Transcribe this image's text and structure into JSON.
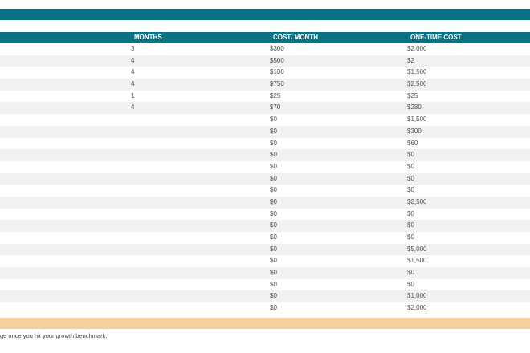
{
  "table": {
    "headers": {
      "months": "MONTHS",
      "cost_month": "COST/ MONTH",
      "one_time": "ONE-TIME COST"
    },
    "rows": [
      {
        "months": "3",
        "cost_month": "$300",
        "one_time": "$2,000"
      },
      {
        "months": "4",
        "cost_month": "$500",
        "one_time": "$2"
      },
      {
        "months": "4",
        "cost_month": "$100",
        "one_time": "$1,500"
      },
      {
        "months": "4",
        "cost_month": "$750",
        "one_time": "$2,500"
      },
      {
        "months": "1",
        "cost_month": "$25",
        "one_time": "$25"
      },
      {
        "months": "4",
        "cost_month": "$70",
        "one_time": "$280"
      },
      {
        "months": "",
        "cost_month": "$0",
        "one_time": "$1,500"
      },
      {
        "months": "",
        "cost_month": "$0",
        "one_time": "$300"
      },
      {
        "months": "",
        "cost_month": "$0",
        "one_time": "$60"
      },
      {
        "months": "",
        "cost_month": "$0",
        "one_time": "$0"
      },
      {
        "months": "",
        "cost_month": "$0",
        "one_time": "$0"
      },
      {
        "months": "",
        "cost_month": "$0",
        "one_time": "$0"
      },
      {
        "months": "",
        "cost_month": "$0",
        "one_time": "$0"
      },
      {
        "months": "",
        "cost_month": "$0",
        "one_time": "$2,500"
      },
      {
        "months": "",
        "cost_month": "$0",
        "one_time": "$0"
      },
      {
        "months": "",
        "cost_month": "$0",
        "one_time": "$0"
      },
      {
        "months": "",
        "cost_month": "$0",
        "one_time": "$0"
      },
      {
        "months": "",
        "cost_month": "$0",
        "one_time": "$5,000"
      },
      {
        "months": "",
        "cost_month": "$0",
        "one_time": "$1,500"
      },
      {
        "months": "",
        "cost_month": "$0",
        "one_time": "$0"
      },
      {
        "months": "",
        "cost_month": "$0",
        "one_time": "$0"
      },
      {
        "months": "",
        "cost_month": "$0",
        "one_time": "$1,000"
      },
      {
        "months": "",
        "cost_month": "$0",
        "one_time": "$2,000"
      }
    ]
  },
  "footnote": "ge once you hit your growth benchmark.",
  "colors": {
    "header_bg": "#0b7285",
    "total_bg": "#f6cf9f",
    "alt_row": "#f1f1f1"
  }
}
